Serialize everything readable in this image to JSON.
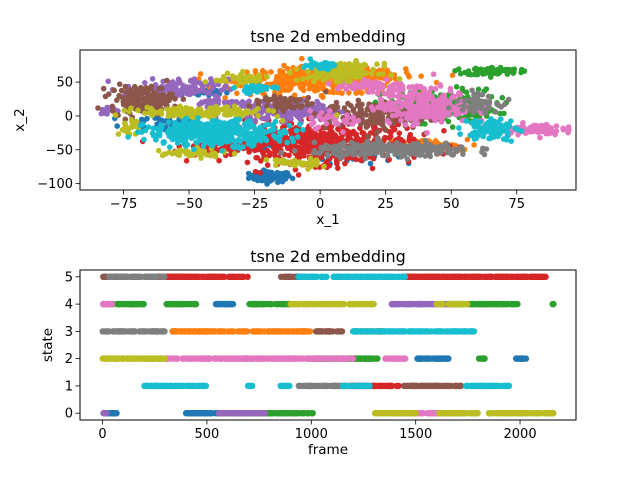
{
  "palette": [
    "#1f77b4",
    "#ff7f0e",
    "#2ca02c",
    "#d62728",
    "#9467bd",
    "#8c564b",
    "#e377c2",
    "#7f7f7f",
    "#bcbd22",
    "#17becf"
  ],
  "chart_data": [
    {
      "type": "scatter",
      "title": "tsne 2d embedding",
      "xlabel": "x_1",
      "ylabel": "x_2",
      "xlim": [
        -91.6,
        97.6
      ],
      "ylim": [
        -109.4,
        97.4
      ],
      "xticks": [
        {
          "v": -75,
          "label": "−75"
        },
        {
          "v": -50,
          "label": "−50"
        },
        {
          "v": -25,
          "label": "−25"
        },
        {
          "v": 0,
          "label": "0"
        },
        {
          "v": 25,
          "label": "25"
        },
        {
          "v": 50,
          "label": "50"
        },
        {
          "v": 75,
          "label": "75"
        }
      ],
      "yticks": [
        {
          "v": 50,
          "label": "50"
        },
        {
          "v": 0,
          "label": "0"
        },
        {
          "v": -50,
          "label": "−50"
        },
        {
          "v": -100,
          "label": "−100"
        }
      ],
      "grid": false,
      "series": [
        {
          "color": 0,
          "clusters": [
            {
              "x": -19,
              "y": -90,
              "sx": 4,
              "sy": 4,
              "n": 90
            },
            {
              "x": -45,
              "y": 35,
              "sx": 5,
              "sy": 3,
              "n": 30
            },
            {
              "x": -60,
              "y": -10,
              "sx": 8,
              "sy": 6,
              "n": 40
            },
            {
              "x": 12,
              "y": -58,
              "sx": 8,
              "sy": 6,
              "n": 40
            },
            {
              "x": -25,
              "y": -45,
              "sx": 5,
              "sy": 4,
              "n": 20
            }
          ]
        },
        {
          "color": 1,
          "clusters": [
            {
              "x": 0,
              "y": 52,
              "sx": 16,
              "sy": 10,
              "n": 320
            },
            {
              "x": 40,
              "y": -45,
              "sx": 8,
              "sy": 5,
              "n": 60
            },
            {
              "x": 20,
              "y": 60,
              "sx": 8,
              "sy": 5,
              "n": 40
            }
          ]
        },
        {
          "color": 2,
          "clusters": [
            {
              "x": 66,
              "y": 66,
              "sx": 5,
              "sy": 3,
              "n": 80
            },
            {
              "x": 45,
              "y": 15,
              "sx": 11,
              "sy": 12,
              "n": 220
            }
          ]
        },
        {
          "color": 3,
          "clusters": [
            {
              "x": 0,
              "y": -40,
              "sx": 18,
              "sy": 15,
              "n": 500
            },
            {
              "x": -35,
              "y": -45,
              "sx": 8,
              "sy": 5,
              "n": 60
            }
          ]
        },
        {
          "color": 4,
          "clusters": [
            {
              "x": -55,
              "y": 40,
              "sx": 10,
              "sy": 7,
              "n": 120
            },
            {
              "x": -10,
              "y": 8,
              "sx": 9,
              "sy": 7,
              "n": 200
            },
            {
              "x": -80,
              "y": 8,
              "sx": 2,
              "sy": 3,
              "n": 15
            },
            {
              "x": -35,
              "y": 20,
              "sx": 8,
              "sy": 3,
              "n": 40
            }
          ]
        },
        {
          "color": 5,
          "clusters": [
            {
              "x": -68,
              "y": 25,
              "sx": 6,
              "sy": 10,
              "n": 160
            },
            {
              "x": 20,
              "y": 0,
              "sx": 9,
              "sy": 10,
              "n": 160
            },
            {
              "x": -15,
              "y": 20,
              "sx": 6,
              "sy": 6,
              "n": 50
            }
          ]
        },
        {
          "color": 6,
          "clusters": [
            {
              "x": 40,
              "y": 15,
              "sx": 9,
              "sy": 13,
              "n": 260
            },
            {
              "x": 80,
              "y": -20,
              "sx": 6,
              "sy": 4,
              "n": 90
            },
            {
              "x": 20,
              "y": 45,
              "sx": 7,
              "sy": 5,
              "n": 60
            },
            {
              "x": 5,
              "y": -5,
              "sx": 6,
              "sy": 6,
              "n": 30
            }
          ]
        },
        {
          "color": 7,
          "clusters": [
            {
              "x": 28,
              "y": -50,
              "sx": 15,
              "sy": 5,
              "n": 300
            },
            {
              "x": 60,
              "y": 20,
              "sx": 4,
              "sy": 7,
              "n": 60
            }
          ]
        },
        {
          "color": 8,
          "clusters": [
            {
              "x": 8,
              "y": 65,
              "sx": 7,
              "sy": 6,
              "n": 140
            },
            {
              "x": -45,
              "y": 5,
              "sx": 12,
              "sy": 4,
              "n": 160
            },
            {
              "x": -30,
              "y": 55,
              "sx": 5,
              "sy": 4,
              "n": 60
            },
            {
              "x": -48,
              "y": -55,
              "sx": 6,
              "sy": 3,
              "n": 50
            },
            {
              "x": -10,
              "y": -70,
              "sx": 5,
              "sy": 4,
              "n": 40
            },
            {
              "x": -73,
              "y": -18,
              "sx": 2,
              "sy": 5,
              "n": 20
            }
          ]
        },
        {
          "color": 9,
          "clusters": [
            {
              "x": -40,
              "y": -25,
              "sx": 13,
              "sy": 9,
              "n": 380
            },
            {
              "x": 65,
              "y": -20,
              "sx": 5,
              "sy": 8,
              "n": 90
            },
            {
              "x": 0,
              "y": 75,
              "sx": 3,
              "sy": 3,
              "n": 40
            },
            {
              "x": -25,
              "y": 40,
              "sx": 4,
              "sy": 3,
              "n": 30
            }
          ]
        }
      ]
    },
    {
      "type": "scatter",
      "title": "tsne 2d embedding",
      "xlabel": "frame",
      "ylabel": "state",
      "xlim": [
        -108,
        2268
      ],
      "ylim": [
        -0.25,
        5.25
      ],
      "xticks": [
        {
          "v": 0,
          "label": "0"
        },
        {
          "v": 500,
          "label": "500"
        },
        {
          "v": 1000,
          "label": "1000"
        },
        {
          "v": 1500,
          "label": "1500"
        },
        {
          "v": 2000,
          "label": "2000"
        }
      ],
      "yticks": [
        {
          "v": 0,
          "label": "0"
        },
        {
          "v": 1,
          "label": "1"
        },
        {
          "v": 2,
          "label": "2"
        },
        {
          "v": 3,
          "label": "3"
        },
        {
          "v": 4,
          "label": "4"
        },
        {
          "v": 5,
          "label": "5"
        }
      ],
      "grid": false,
      "series": [
        {
          "color": 0,
          "segments": [
            {
              "state": 0,
              "from": 0,
              "to": 70
            },
            {
              "state": 0,
              "from": 400,
              "to": 720
            },
            {
              "state": 4,
              "from": 540,
              "to": 630
            },
            {
              "state": 2,
              "from": 1500,
              "to": 1660
            },
            {
              "state": 2,
              "from": 1980,
              "to": 2030
            }
          ]
        },
        {
          "color": 1,
          "segments": [
            {
              "state": 3,
              "from": 330,
              "to": 1000
            },
            {
              "state": 5,
              "from": 300,
              "to": 380
            },
            {
              "state": 1,
              "from": 1680,
              "to": 1720
            },
            {
              "state": 3,
              "from": 1200,
              "to": 1340
            }
          ]
        },
        {
          "color": 2,
          "segments": [
            {
              "state": 4,
              "from": 20,
              "to": 200
            },
            {
              "state": 4,
              "from": 300,
              "to": 450
            },
            {
              "state": 4,
              "from": 700,
              "to": 900
            },
            {
              "state": 4,
              "from": 1700,
              "to": 1990
            },
            {
              "state": 4,
              "from": 2155,
              "to": 2160
            },
            {
              "state": 2,
              "from": 1000,
              "to": 1320
            },
            {
              "state": 2,
              "from": 1800,
              "to": 1830
            },
            {
              "state": 0,
              "from": 700,
              "to": 1010
            }
          ]
        },
        {
          "color": 3,
          "segments": [
            {
              "state": 5,
              "from": 210,
              "to": 700
            },
            {
              "state": 5,
              "from": 1450,
              "to": 2130
            },
            {
              "state": 1,
              "from": 1160,
              "to": 1420
            }
          ]
        },
        {
          "color": 4,
          "segments": [
            {
              "state": 0,
              "from": 550,
              "to": 780
            },
            {
              "state": 4,
              "from": 1380,
              "to": 1700
            },
            {
              "state": 0,
              "from": 0,
              "to": 20
            }
          ]
        },
        {
          "color": 5,
          "segments": [
            {
              "state": 5,
              "from": 0,
              "to": 120
            },
            {
              "state": 5,
              "from": 850,
              "to": 950
            },
            {
              "state": 3,
              "from": 1020,
              "to": 1150
            },
            {
              "state": 1,
              "from": 1440,
              "to": 1720
            }
          ]
        },
        {
          "color": 6,
          "segments": [
            {
              "state": 4,
              "from": 0,
              "to": 50
            },
            {
              "state": 2,
              "from": 300,
              "to": 1200
            },
            {
              "state": 2,
              "from": 1350,
              "to": 1450
            },
            {
              "state": 0,
              "from": 1400,
              "to": 1700
            }
          ]
        },
        {
          "color": 7,
          "segments": [
            {
              "state": 5,
              "from": 30,
              "to": 300
            },
            {
              "state": 3,
              "from": 0,
              "to": 300
            },
            {
              "state": 1,
              "from": 930,
              "to": 1160
            }
          ]
        },
        {
          "color": 8,
          "segments": [
            {
              "state": 2,
              "from": 0,
              "to": 300
            },
            {
              "state": 4,
              "from": 900,
              "to": 1300
            },
            {
              "state": 4,
              "from": 1600,
              "to": 1750
            },
            {
              "state": 0,
              "from": 1300,
              "to": 1500
            },
            {
              "state": 0,
              "from": 1600,
              "to": 1800
            },
            {
              "state": 0,
              "from": 1850,
              "to": 2160
            }
          ]
        },
        {
          "color": 9,
          "segments": [
            {
              "state": 5,
              "from": 930,
              "to": 1450
            },
            {
              "state": 3,
              "from": 1200,
              "to": 1780
            },
            {
              "state": 1,
              "from": 200,
              "to": 500
            },
            {
              "state": 1,
              "from": 690,
              "to": 720
            },
            {
              "state": 1,
              "from": 850,
              "to": 900
            },
            {
              "state": 1,
              "from": 1150,
              "to": 1280
            },
            {
              "state": 1,
              "from": 1740,
              "to": 1950
            }
          ]
        }
      ]
    }
  ]
}
